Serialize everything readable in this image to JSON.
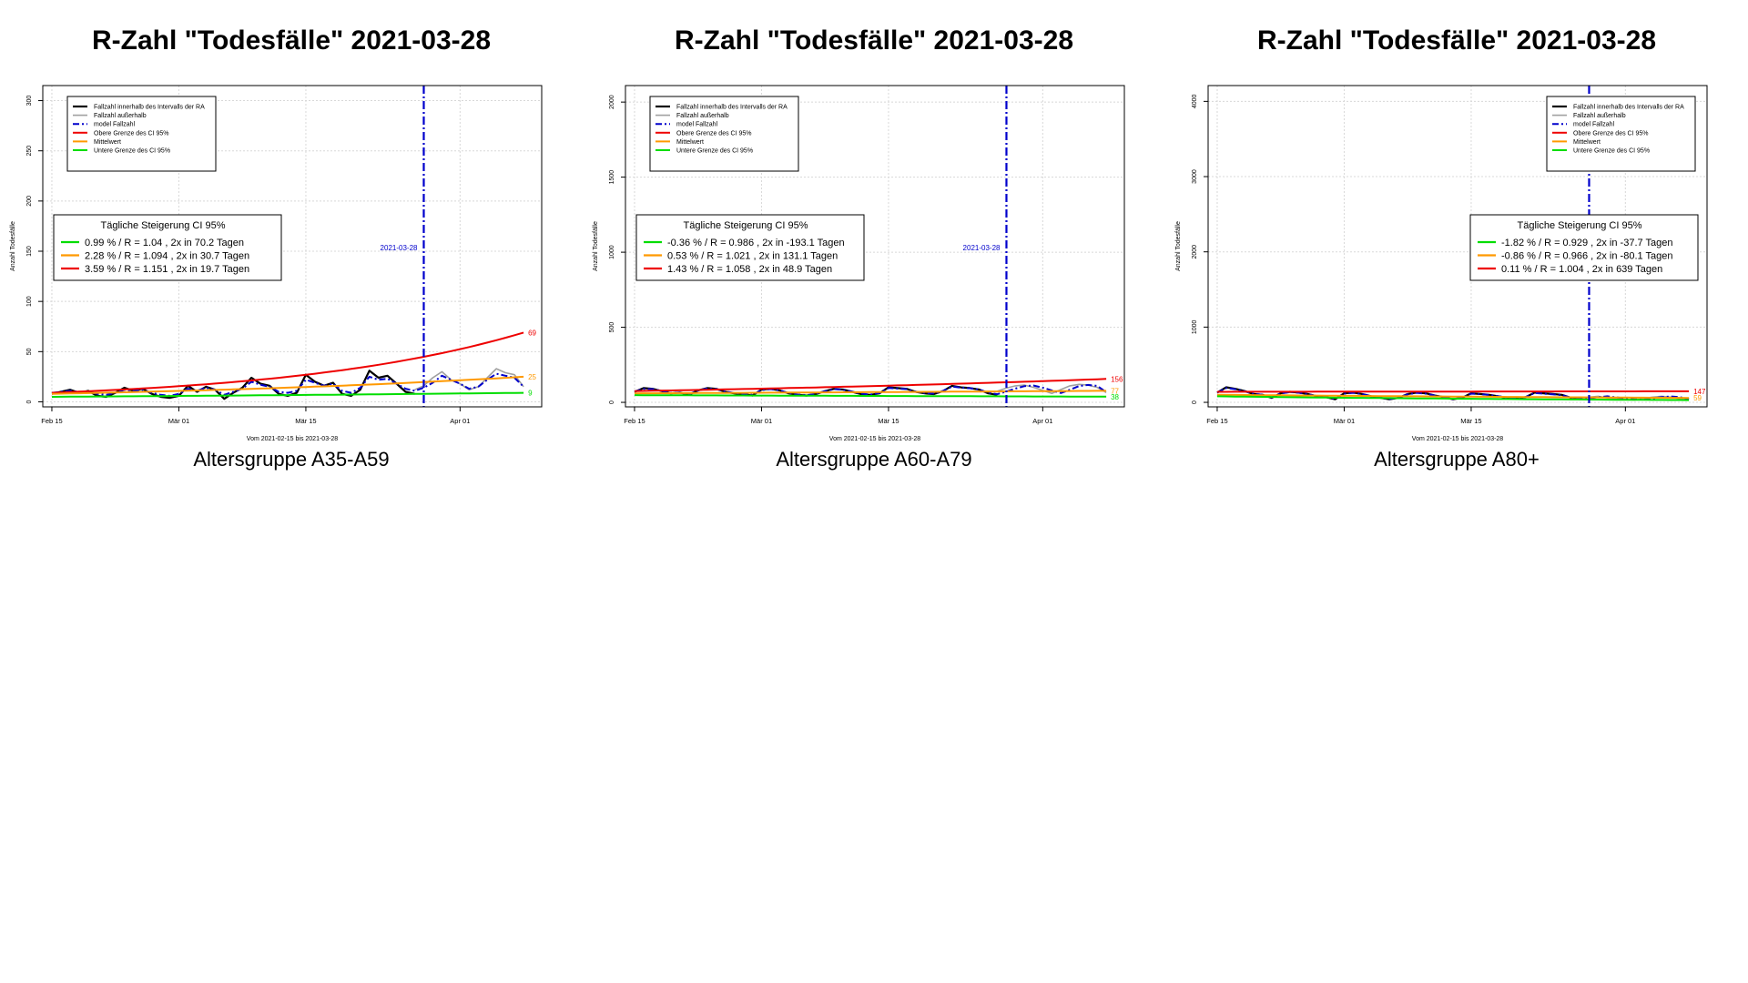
{
  "colors": {
    "inside": "#000000",
    "outside": "#a0a0a0",
    "model": "#0000cc",
    "upper": "#ee0000",
    "mean": "#ff9900",
    "lower": "#00dd00",
    "date_line": "#0000cc",
    "grid": "#d8d8d8"
  },
  "chart_data": [
    {
      "type": "line",
      "title": "R-Zahl \"Todesfälle\" 2021-03-28",
      "subtitle": "Altersgruppe A35-A59",
      "xlabel": "Vom 2021-02-15 bis 2021-03-28",
      "ylabel": "Anzahl Todesfälle",
      "x_start": "2021-02-15",
      "x_end": "2021-04-08",
      "xlim": [
        "2021-02-14",
        "2021-04-10"
      ],
      "ylim": [
        -5,
        315
      ],
      "y_ticks": [
        0,
        50,
        100,
        150,
        200,
        250,
        300
      ],
      "x_ticks": [
        {
          "date": "2021-02-15",
          "label": "Feb 15"
        },
        {
          "date": "2021-03-01",
          "label": "Mär 01"
        },
        {
          "date": "2021-03-15",
          "label": "Mär 15"
        },
        {
          "date": "2021-04-01",
          "label": "Apr 01"
        }
      ],
      "vline": {
        "date": "2021-03-28",
        "label": "2021-03-28"
      },
      "grid": true,
      "legend_position": "top-left",
      "legend": [
        {
          "label": "Fallzahl innerhalb des Intervalls der RA",
          "style": "inside"
        },
        {
          "label": "Fallzahl außerhalb",
          "style": "outside"
        },
        {
          "label": "model Fallzahl",
          "style": "model"
        },
        {
          "label": "Obere Grenze des CI 95%",
          "style": "upper"
        },
        {
          "label": "Mittelwert",
          "style": "mean"
        },
        {
          "label": "Untere Grenze des CI 95%",
          "style": "lower"
        }
      ],
      "ci_box": {
        "title": "Tägliche Steigerung CI  95%",
        "position": "left",
        "rows": [
          {
            "color": "lower",
            "text": "0.99 % / R = 1.04  , 2x in 70.2 Tagen"
          },
          {
            "color": "mean",
            "text": "2.28 % / R = 1.094  , 2x in 30.7 Tagen"
          },
          {
            "color": "upper",
            "text": "3.59 % / R = 1.151  , 2x in 19.7 Tagen"
          }
        ]
      },
      "series": [
        {
          "name": "Fallzahl innerhalb des Intervalls der RA",
          "style": "inside",
          "start": "2021-02-15",
          "values": [
            8,
            10,
            12,
            9,
            11,
            6,
            5,
            9,
            14,
            11,
            13,
            8,
            5,
            4,
            6,
            16,
            10,
            15,
            12,
            3,
            9,
            14,
            24,
            18,
            16,
            8,
            6,
            9,
            27,
            20,
            16,
            19,
            8,
            6,
            12,
            31,
            24,
            26,
            18,
            10,
            8
          ]
        },
        {
          "name": "Fallzahl außerhalb",
          "style": "outside",
          "start": "2021-03-27",
          "values": [
            12,
            16,
            24,
            30,
            22,
            18,
            12,
            15,
            24,
            33,
            29,
            27,
            15
          ]
        },
        {
          "name": "model Fallzahl",
          "style": "model",
          "start": "2021-02-15",
          "values": [
            9,
            10,
            11,
            10,
            10,
            8,
            7,
            9,
            12,
            11,
            12,
            9,
            7,
            6,
            8,
            13,
            11,
            14,
            12,
            7,
            10,
            13,
            20,
            17,
            15,
            10,
            9,
            11,
            22,
            19,
            16,
            18,
            11,
            9,
            14,
            25,
            22,
            23,
            18,
            13,
            11,
            14,
            19,
            26,
            22,
            18,
            13,
            15,
            22,
            28,
            26,
            24,
            15
          ]
        },
        {
          "name": "Obere Grenze des CI 95%",
          "style": "upper",
          "start": "2021-02-15",
          "end": "2021-04-08",
          "from": 9,
          "to": 69,
          "shape": "exp",
          "end_label": "69"
        },
        {
          "name": "Mittelwert",
          "style": "mean",
          "start": "2021-02-15",
          "end": "2021-04-08",
          "from": 8,
          "to": 25,
          "shape": "exp",
          "end_label": "25"
        },
        {
          "name": "Untere Grenze des CI 95%",
          "style": "lower",
          "start": "2021-02-15",
          "end": "2021-04-08",
          "from": 5,
          "to": 9,
          "shape": "exp",
          "end_label": "9"
        }
      ]
    },
    {
      "type": "line",
      "title": "R-Zahl \"Todesfälle\" 2021-03-28",
      "subtitle": "Altersgruppe A60-A79",
      "xlabel": "Vom 2021-02-15 bis 2021-03-28",
      "ylabel": "Anzahl Todesfälle",
      "x_start": "2021-02-15",
      "x_end": "2021-04-08",
      "xlim": [
        "2021-02-14",
        "2021-04-10"
      ],
      "ylim": [
        -30,
        2110
      ],
      "y_ticks": [
        0,
        500,
        1000,
        1500,
        2000
      ],
      "x_ticks": [
        {
          "date": "2021-02-15",
          "label": "Feb 15"
        },
        {
          "date": "2021-03-01",
          "label": "Mär 01"
        },
        {
          "date": "2021-03-15",
          "label": "Mär 15"
        },
        {
          "date": "2021-04-01",
          "label": "Apr 01"
        }
      ],
      "vline": {
        "date": "2021-03-28",
        "label": "2021-03-28"
      },
      "grid": true,
      "legend_position": "top-left",
      "legend": [
        {
          "label": "Fallzahl innerhalb des Intervalls der RA",
          "style": "inside"
        },
        {
          "label": "Fallzahl außerhalb",
          "style": "outside"
        },
        {
          "label": "model Fallzahl",
          "style": "model"
        },
        {
          "label": "Obere Grenze des CI 95%",
          "style": "upper"
        },
        {
          "label": "Mittelwert",
          "style": "mean"
        },
        {
          "label": "Untere Grenze des CI 95%",
          "style": "lower"
        }
      ],
      "ci_box": {
        "title": "Tägliche Steigerung CI  95%",
        "position": "left",
        "rows": [
          {
            "color": "lower",
            "text": "-0.36 % / R = 0.986  , 2x in -193.1 Tagen"
          },
          {
            "color": "mean",
            "text": "0.53 % / R = 1.021  , 2x in 131.1 Tagen"
          },
          {
            "color": "upper",
            "text": "1.43 % / R = 1.058  , 2x in 48.9 Tagen"
          }
        ]
      },
      "series": [
        {
          "name": "Fallzahl innerhalb des Intervalls der RA",
          "style": "inside",
          "start": "2021-02-15",
          "values": [
            70,
            95,
            90,
            75,
            60,
            65,
            50,
            80,
            95,
            90,
            70,
            60,
            55,
            45,
            85,
            90,
            80,
            60,
            50,
            45,
            55,
            75,
            90,
            85,
            70,
            55,
            50,
            60,
            100,
            95,
            90,
            70,
            60,
            55,
            75,
            110,
            100,
            95,
            85,
            60,
            50
          ]
        },
        {
          "name": "Fallzahl außerhalb",
          "style": "outside",
          "start": "2021-03-27",
          "values": [
            75,
            95,
            110,
            115,
            100,
            80,
            60,
            85,
            110,
            120,
            115,
            100,
            65
          ]
        },
        {
          "name": "model Fallzahl",
          "style": "model",
          "start": "2021-02-15",
          "values": [
            72,
            90,
            88,
            76,
            62,
            64,
            54,
            78,
            92,
            88,
            72,
            62,
            56,
            50,
            82,
            88,
            80,
            62,
            52,
            48,
            56,
            74,
            88,
            84,
            72,
            58,
            52,
            62,
            96,
            92,
            88,
            72,
            62,
            58,
            76,
            105,
            98,
            94,
            86,
            64,
            54,
            72,
            92,
            108,
            112,
            98,
            80,
            62,
            84,
            108,
            116,
            110,
            68
          ]
        },
        {
          "name": "Obere Grenze des CI 95%",
          "style": "upper",
          "start": "2021-02-15",
          "end": "2021-04-08",
          "from": 75,
          "to": 156,
          "shape": "exp",
          "end_label": "156"
        },
        {
          "name": "Mittelwert",
          "style": "mean",
          "start": "2021-02-15",
          "end": "2021-04-08",
          "from": 60,
          "to": 77,
          "shape": "exp",
          "end_label": "77"
        },
        {
          "name": "Untere Grenze des CI 95%",
          "style": "lower",
          "start": "2021-02-15",
          "end": "2021-04-08",
          "from": 48,
          "to": 38,
          "shape": "exp",
          "end_label": "38"
        }
      ]
    },
    {
      "type": "line",
      "title": "R-Zahl \"Todesfälle\" 2021-03-28",
      "subtitle": "Altersgruppe A80+",
      "xlabel": "Vom 2021-02-15 bis 2021-03-28",
      "ylabel": "Anzahl Todesfälle",
      "x_start": "2021-02-15",
      "x_end": "2021-04-08",
      "xlim": [
        "2021-02-14",
        "2021-04-10"
      ],
      "ylim": [
        -60,
        4210
      ],
      "y_ticks": [
        0,
        1000,
        2000,
        3000,
        4000
      ],
      "x_ticks": [
        {
          "date": "2021-02-15",
          "label": "Feb 15"
        },
        {
          "date": "2021-03-01",
          "label": "Mär 01"
        },
        {
          "date": "2021-03-15",
          "label": "Mär 15"
        },
        {
          "date": "2021-04-01",
          "label": "Apr 01"
        }
      ],
      "vline": {
        "date": "2021-03-28",
        "label": ""
      },
      "grid": true,
      "legend_position": "top-right",
      "legend": [
        {
          "label": "Fallzahl innerhalb des Intervalls der RA",
          "style": "inside"
        },
        {
          "label": "Fallzahl außerhalb",
          "style": "outside"
        },
        {
          "label": "model Fallzahl",
          "style": "model"
        },
        {
          "label": "Obere Grenze des CI 95%",
          "style": "upper"
        },
        {
          "label": "Mittelwert",
          "style": "mean"
        },
        {
          "label": "Untere Grenze des CI 95%",
          "style": "lower"
        }
      ],
      "ci_box": {
        "title": "Tägliche Steigerung CI  95%",
        "position": "right",
        "rows": [
          {
            "color": "lower",
            "text": "-1.82 % / R = 0.929  , 2x in -37.7 Tagen"
          },
          {
            "color": "mean",
            "text": "-0.86 % / R = 0.966  , 2x in -80.1 Tagen"
          },
          {
            "color": "upper",
            "text": "0.11 % / R = 1.004  , 2x in 639 Tagen"
          }
        ]
      },
      "series": [
        {
          "name": "Fallzahl innerhalb des Intervalls der RA",
          "style": "inside",
          "start": "2021-02-15",
          "values": [
            130,
            200,
            180,
            150,
            110,
            100,
            60,
            120,
            140,
            130,
            110,
            80,
            70,
            40,
            120,
            130,
            110,
            80,
            60,
            40,
            60,
            110,
            130,
            120,
            90,
            70,
            40,
            60,
            120,
            110,
            100,
            80,
            60,
            50,
            70,
            130,
            120,
            110,
            100,
            60,
            40
          ]
        },
        {
          "name": "Fallzahl außerhalb",
          "style": "outside",
          "start": "2021-03-27",
          "values": [
            50,
            70,
            80,
            60,
            50,
            40,
            30,
            50,
            70,
            80,
            70,
            50,
            40
          ]
        },
        {
          "name": "model Fallzahl",
          "style": "model",
          "start": "2021-02-15",
          "values": [
            130,
            190,
            175,
            148,
            112,
            100,
            66,
            118,
            136,
            128,
            108,
            82,
            70,
            46,
            116,
            126,
            108,
            82,
            62,
            44,
            62,
            106,
            126,
            116,
            90,
            70,
            44,
            62,
            116,
            108,
            98,
            80,
            62,
            52,
            70,
            124,
            116,
            106,
            96,
            62,
            44,
            52,
            68,
            80,
            66,
            52,
            42,
            34,
            52,
            70,
            78,
            70,
            44
          ]
        },
        {
          "name": "Obere Grenze des CI 95%",
          "style": "upper",
          "start": "2021-02-15",
          "end": "2021-04-08",
          "from": 140,
          "to": 147,
          "shape": "exp",
          "end_label": "147"
        },
        {
          "name": "Mittelwert",
          "style": "mean",
          "start": "2021-02-15",
          "end": "2021-04-08",
          "from": 100,
          "to": 59,
          "shape": "exp",
          "end_label": "59"
        },
        {
          "name": "Untere Grenze des CI 95%",
          "style": "lower",
          "start": "2021-02-15",
          "end": "2021-04-08",
          "from": 80,
          "to": 30,
          "shape": "exp",
          "end_label": ""
        }
      ]
    }
  ]
}
